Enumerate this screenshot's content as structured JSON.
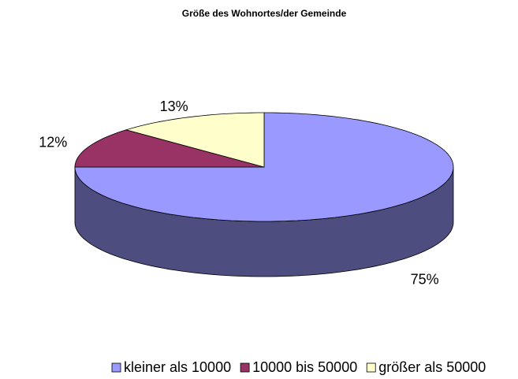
{
  "chart_data": {
    "type": "pie",
    "title": "Größe des Wohnortes/der Gemeinde",
    "categories": [
      "kleiner als 10000",
      "10000 bis 50000",
      "größer als 50000"
    ],
    "values": [
      75,
      12,
      13
    ],
    "value_labels": [
      "75%",
      "12%",
      "13%"
    ],
    "colors": [
      "#9999ff",
      "#993366",
      "#ffffcc"
    ],
    "legend": "bottom"
  }
}
